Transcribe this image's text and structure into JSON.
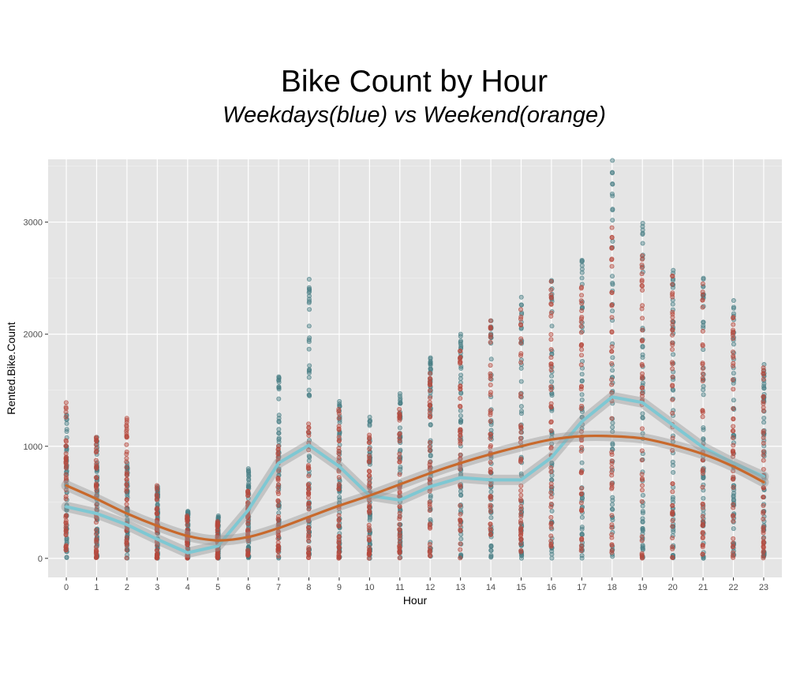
{
  "chart_data": {
    "type": "scatter",
    "title": "Bike Count by Hour",
    "subtitle": "Weekdays(blue) vs Weekend(orange)",
    "xlabel": "Hour",
    "ylabel": "Rented.Bike.Count",
    "xlim": [
      -0.6,
      23.6
    ],
    "ylim": [
      -170,
      3560
    ],
    "x_ticks": [
      0,
      1,
      2,
      3,
      4,
      5,
      6,
      7,
      8,
      9,
      10,
      11,
      12,
      13,
      14,
      15,
      16,
      17,
      18,
      19,
      20,
      21,
      22,
      23
    ],
    "y_ticks": [
      0,
      1000,
      2000,
      3000
    ],
    "grid": true,
    "background": "#e5e5e5",
    "point_colors": {
      "weekday": "#4a7f86",
      "weekend": "#b5493e"
    },
    "point_ranges": {
      "hours": [
        0,
        1,
        2,
        3,
        4,
        5,
        6,
        7,
        8,
        9,
        10,
        11,
        12,
        13,
        14,
        15,
        16,
        17,
        18,
        19,
        20,
        21,
        22,
        23
      ],
      "weekday_max": [
        1280,
        1080,
        850,
        640,
        420,
        380,
        800,
        1620,
        2490,
        1400,
        1260,
        1470,
        1790,
        2000,
        2120,
        2330,
        2480,
        2660,
        3550,
        2990,
        2570,
        2500,
        2300,
        1730
      ],
      "weekend_max": [
        1390,
        1080,
        1250,
        650,
        380,
        330,
        600,
        1000,
        1200,
        1330,
        1100,
        1330,
        1650,
        1850,
        2120,
        2220,
        2470,
        2420,
        2950,
        2700,
        2520,
        2450,
        2150,
        1700
      ]
    },
    "series": [
      {
        "name": "Weekdays",
        "color": "#7ec8d3",
        "type": "line",
        "x": [
          0,
          1,
          2,
          3,
          4,
          5,
          6,
          7,
          8,
          9,
          10,
          11,
          12,
          13,
          14,
          15,
          16,
          17,
          18,
          19,
          20,
          21,
          22,
          23
        ],
        "y": [
          460,
          400,
          300,
          170,
          50,
          110,
          430,
          850,
          1010,
          820,
          560,
          520,
          640,
          720,
          700,
          700,
          900,
          1220,
          1440,
          1390,
          1190,
          990,
          850,
          730
        ]
      },
      {
        "name": "Weekend",
        "color": "#c8692c",
        "type": "smooth",
        "x": [
          0,
          1,
          2,
          3,
          4,
          5,
          6,
          7,
          8,
          9,
          10,
          11,
          12,
          13,
          14,
          15,
          16,
          17,
          18,
          19,
          20,
          21,
          22,
          23
        ],
        "y": [
          650,
          530,
          400,
          290,
          200,
          160,
          190,
          270,
          370,
          470,
          560,
          660,
          760,
          850,
          930,
          1000,
          1060,
          1090,
          1090,
          1070,
          1010,
          930,
          820,
          680
        ]
      }
    ]
  }
}
